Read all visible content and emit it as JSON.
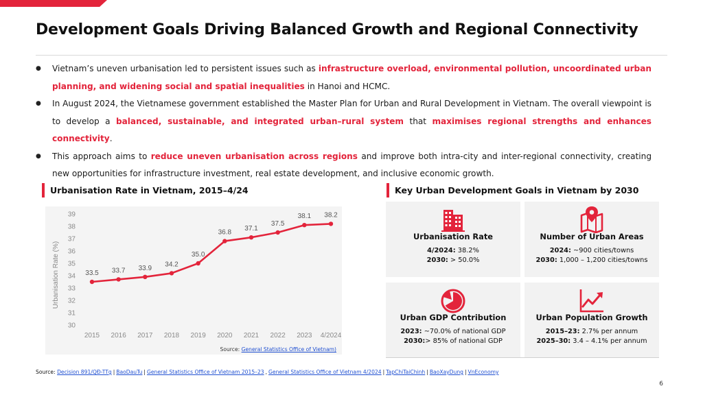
{
  "title": "Development Goals Driving Balanced Growth and Regional Connectivity",
  "bullets": [
    {
      "parts": [
        {
          "text": "Vietnam’s uneven urbanisation led to persistent issues such as ",
          "hl": false
        },
        {
          "text": "infrastructure overload, environmental pollution, uncoordinated urban planning, and widening social and spatial inequalities",
          "hl": true
        },
        {
          "text": " in Hanoi and HCMC.",
          "hl": false
        }
      ]
    },
    {
      "parts": [
        {
          "text": "In August 2024, the Vietnamese government established the Master Plan for Urban and Rural Development in Vietnam. The overall viewpoint is to develop a ",
          "hl": false
        },
        {
          "text": "balanced, sustainable, and integrated urban–rural system",
          "hl": true
        },
        {
          "text": " that ",
          "hl": false
        },
        {
          "text": "maximises regional strengths and enhances connectivity",
          "hl": true
        },
        {
          "text": ".",
          "hl": false
        }
      ]
    },
    {
      "parts": [
        {
          "text": "This approach aims to ",
          "hl": false
        },
        {
          "text": "reduce uneven urbanisation across regions",
          "hl": true
        },
        {
          "text": " and improve both intra-city and inter-regional connectivity, creating new opportunities for infrastructure investment, real estate development, and inclusive economic growth.",
          "hl": false
        }
      ]
    }
  ],
  "chart_section_title": "Urbanisation Rate in Vietnam, 2015–4/24",
  "goals_section_title": "Key Urban Development Goals in Vietnam by 2030",
  "chart_data": {
    "type": "line",
    "title": "Urbanisation Rate in Vietnam, 2015–4/24",
    "xlabel": "",
    "ylabel": "Urbanisation Rate (%)",
    "categories": [
      "2015",
      "2016",
      "2017",
      "2018",
      "2019",
      "2020",
      "2021",
      "2022",
      "2023",
      "4/2024"
    ],
    "values": [
      33.5,
      33.7,
      33.9,
      34.2,
      35.0,
      36.8,
      37.1,
      37.5,
      38.1,
      38.2
    ],
    "value_labels": [
      "33.5",
      "33.7",
      "33.9",
      "34.2",
      "35.0",
      "36.8",
      "37.1",
      "37.5",
      "38.1",
      "38.2"
    ],
    "yticks": [
      "30",
      "31",
      "32",
      "33",
      "34",
      "35",
      "36",
      "37",
      "38",
      "39"
    ],
    "ylim": [
      30,
      39
    ],
    "grid": false,
    "legend": "none",
    "line_color": "#e3243b"
  },
  "chart_source": {
    "prefix": "Source: ",
    "link": "General Statistics Office of Vietnam)"
  },
  "goals": {
    "urbanisation": {
      "title": "Urbanisation Rate",
      "l1_label": "4/2024:",
      "l1_value": " 38.2%",
      "l2_label": "2030:",
      "l2_value": " > 50.0%",
      "icon": "buildings-icon"
    },
    "urban_areas": {
      "title": "Number of Urban Areas",
      "l1_label": "2024:",
      "l1_value": " ~900 cities/towns",
      "l2_label": "2030:",
      "l2_value": " 1,000 – 1,200 cities/towns",
      "icon": "map-pin-icon"
    },
    "gdp": {
      "title": "Urban GDP Contribution",
      "l1_label": "2023:",
      "l1_value": " ~70.0% of national GDP",
      "l2_label": "2030:",
      "l2_value": "> 85% of national GDP",
      "icon": "pie-chart-icon"
    },
    "population": {
      "title": "Urban Population Growth",
      "l1_label": "2015–23:",
      "l1_value": " 2.7% per annum",
      "l2_label": "2025–30:",
      "l2_value": " 3.4 – 4.1% per annum",
      "icon": "growth-chart-icon"
    }
  },
  "footer": {
    "prefix": "Source: ",
    "links": [
      "Decision 891/QĐ-TTg",
      "BaoDauTu",
      "General Statistics Office of Vietnam 2015–23",
      "General Statistics Office of Vietnam 4/2024",
      "TapChiTaiChinh",
      "BaoXayDung",
      "VnEconomy"
    ],
    "separators": [
      "|",
      "|",
      ",",
      "|",
      "|",
      "|"
    ]
  },
  "page_number": "6",
  "colors": {
    "accent": "#e3243b",
    "card_bg": "#f2f2f2",
    "link": "#1f4fd1"
  }
}
